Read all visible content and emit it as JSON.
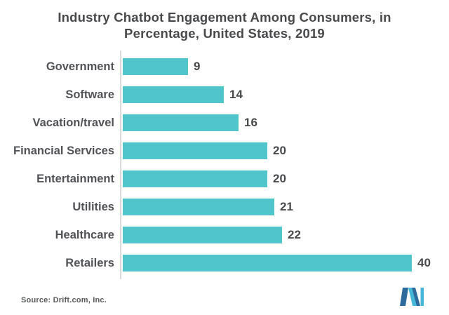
{
  "title_lines": [
    "Industry Chatbot Engagement Among Consumers, in",
    "Percentage, United States, 2019"
  ],
  "source_text": "Source: Drift.com, Inc.",
  "logo": {
    "name": "mordor-intelligence-logo",
    "dark_blue": "#2e6b9d",
    "light_blue": "#47b7d8"
  },
  "colors": {
    "bar": "#50c5cb",
    "title_text": "#48494b",
    "category_text": "#515356",
    "value_text": "#48494b",
    "axis_line": "#dadada",
    "background": "#ffffff"
  },
  "chart_data": {
    "type": "bar",
    "orientation": "horizontal",
    "title": "Industry Chatbot Engagement Among Consumers, in Percentage, United States, 2019",
    "categories": [
      "Government",
      "Software",
      "Vacation/travel",
      "Financial Services",
      "Entertainment",
      "Utilities",
      "Healthcare",
      "Retailers"
    ],
    "values": [
      9,
      14,
      16,
      20,
      20,
      21,
      22,
      40
    ],
    "value_labels_shown": true,
    "xlabel": "",
    "ylabel": "",
    "xlim": [
      0,
      43
    ],
    "grid": false,
    "legend": false,
    "unit": "percent"
  }
}
